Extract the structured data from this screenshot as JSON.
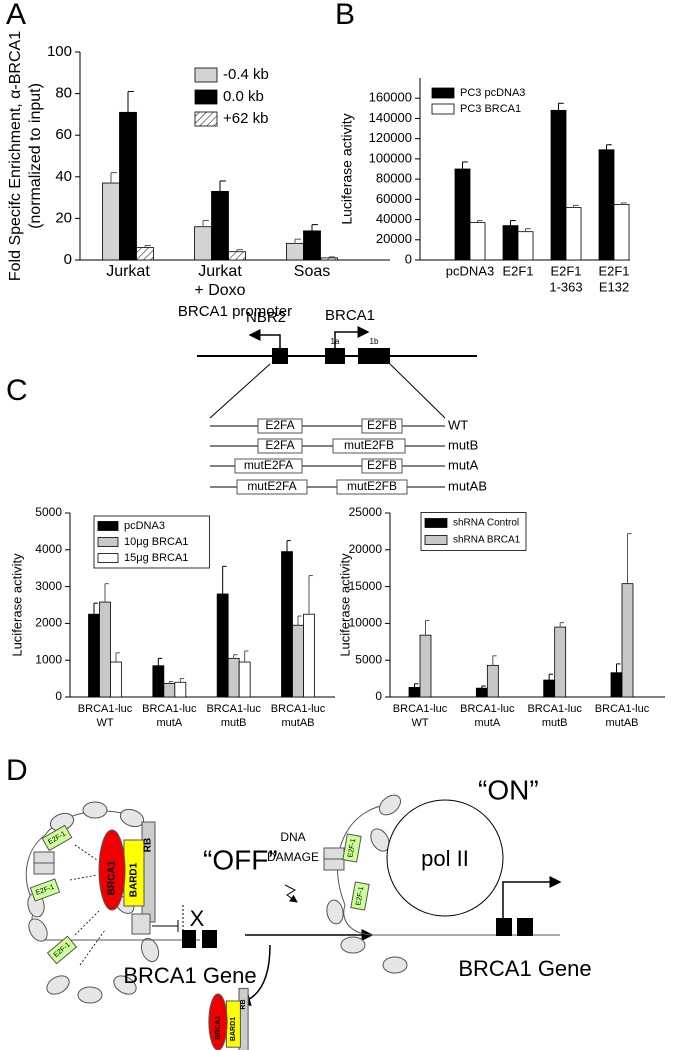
{
  "panel_labels": [
    "A",
    "B",
    "C",
    "D"
  ],
  "chart_data": [
    {
      "type": "bar",
      "ylabel": [
        "Fold Specifc Enrichment, α-BRCA1",
        "(normalized to input)"
      ],
      "xlabel": "BRCA1 promoter",
      "categories": [
        [
          "Jurkat"
        ],
        [
          "Jurkat",
          "+ Doxo"
        ],
        [
          "Soas"
        ]
      ],
      "series": [
        {
          "name": "-0.4 kb",
          "color": "#d3d3d3",
          "values": [
            37,
            16,
            8
          ],
          "errors": [
            5,
            3,
            2
          ]
        },
        {
          "name": "0.0 kb",
          "color": "#000000",
          "values": [
            71,
            33,
            14
          ],
          "errors": [
            10,
            5,
            3
          ]
        },
        {
          "name": "+62 kb",
          "color": "#ffffff",
          "hatch": true,
          "values": [
            6,
            4,
            1
          ],
          "errors": [
            1,
            1,
            0.5
          ]
        }
      ],
      "ylim": [
        0,
        100
      ],
      "yticks": [
        0,
        20,
        40,
        60,
        80,
        100
      ],
      "legend": "upper center",
      "legend_frame": false
    },
    {
      "type": "bar",
      "ylabel": [
        "Luciferase activity"
      ],
      "categories": [
        [
          "pcDNA3"
        ],
        [
          "E2F1"
        ],
        [
          "E2F1",
          "1-363"
        ],
        [
          "E2F1",
          "E132"
        ]
      ],
      "series": [
        {
          "name": "PC3 pcDNA3",
          "color": "#000000",
          "values": [
            90000,
            34000,
            148000,
            109000
          ],
          "errors": [
            7000,
            5000,
            7000,
            5000
          ]
        },
        {
          "name": "PC3 BRCA1",
          "color": "#ffffff",
          "values": [
            37000,
            28000,
            52000,
            55000
          ],
          "errors": [
            2000,
            3000,
            2000,
            1500
          ]
        }
      ],
      "ylim": [
        0,
        180000
      ],
      "yticks": [
        0,
        20000,
        40000,
        60000,
        80000,
        100000,
        120000,
        140000,
        160000
      ],
      "legend": "upper left",
      "legend_frame": false
    },
    {
      "type": "bar",
      "ylabel": [
        "Luciferase activity"
      ],
      "categories": [
        [
          "BRCA1-luc",
          "WT"
        ],
        [
          "BRCA1-luc",
          "mutA"
        ],
        [
          "BRCA1-luc",
          "mutB"
        ],
        [
          "BRCA1-luc",
          "mutAB"
        ]
      ],
      "series": [
        {
          "name": "pcDNA3",
          "color": "#000000",
          "values": [
            2250,
            850,
            2800,
            3950
          ],
          "errors": [
            300,
            200,
            750,
            300
          ]
        },
        {
          "name": "10μg BRCA1",
          "color": "#c8c8c8",
          "values": [
            2580,
            370,
            1050,
            1950
          ],
          "errors": [
            500,
            50,
            100,
            250
          ]
        },
        {
          "name": "15μg BRCA1",
          "color": "#ffffff",
          "values": [
            950,
            400,
            950,
            2250
          ],
          "errors": [
            250,
            100,
            300,
            1050
          ]
        }
      ],
      "ylim": [
        0,
        5000
      ],
      "yticks": [
        0,
        1000,
        2000,
        3000,
        4000,
        5000
      ],
      "legend": "upper left",
      "legend_frame": true
    },
    {
      "type": "bar",
      "ylabel": [
        "Luciferase activity"
      ],
      "categories": [
        [
          "BRCA1-luc",
          "WT"
        ],
        [
          "BRCA1-luc",
          "mutA"
        ],
        [
          "BRCA1-luc",
          "mutB"
        ],
        [
          "BRCA1-luc",
          "mutAB"
        ]
      ],
      "series": [
        {
          "name": "shRNA Control",
          "color": "#000000",
          "values": [
            1300,
            1200,
            2300,
            3300
          ],
          "errors": [
            500,
            300,
            800,
            1200
          ]
        },
        {
          "name": "shRNA BRCA1",
          "color": "#c8c8c8",
          "values": [
            8400,
            4300,
            9500,
            15400
          ],
          "errors": [
            2000,
            1300,
            600,
            6800
          ]
        }
      ],
      "ylim": [
        0,
        25000
      ],
      "yticks": [
        0,
        5000,
        10000,
        15000,
        20000,
        25000
      ],
      "legend": "upper left",
      "legend_frame": true
    }
  ],
  "promoter_diagram": {
    "genes": [
      "NBR2",
      "BRCA1"
    ],
    "exons": [
      "1a",
      "1b"
    ],
    "constructs": [
      {
        "name": "WT",
        "sites": [
          "E2FA",
          "E2FB"
        ]
      },
      {
        "name": "mutB",
        "sites": [
          "E2FA",
          "mutE2FB"
        ]
      },
      {
        "name": "mutA",
        "sites": [
          "mutE2FA",
          "E2FB"
        ]
      },
      {
        "name": "mutAB",
        "sites": [
          "mutE2FA",
          "mutE2FB"
        ]
      }
    ]
  },
  "model_diagram": {
    "state_off": "“OFF”",
    "trigger": [
      "DNA",
      "DAMAGE"
    ],
    "state_on": "“ON”",
    "gene_label_off": "BRCA1 Gene",
    "gene_label_on": "BRCA1 Gene",
    "polymerase": "pol II",
    "proteins": [
      "BRCA1",
      "BARD1",
      "RB"
    ],
    "factor": "E2F-1",
    "block": "X"
  }
}
